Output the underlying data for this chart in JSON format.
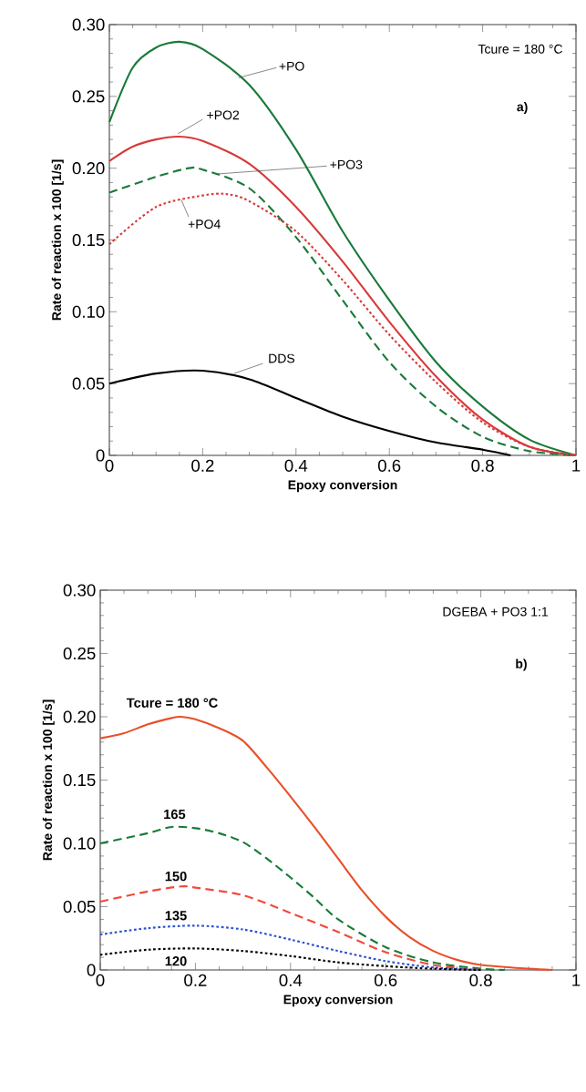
{
  "chart_data": [
    {
      "type": "line",
      "xlabel": "Epoxy conversion",
      "ylabel": "Rate of reaction x 100 [1/s]",
      "xlim": [
        0,
        1
      ],
      "ylim": [
        0,
        0.3
      ],
      "xticks": [
        {
          "value": 0,
          "label": "0"
        },
        {
          "value": 0.2,
          "label": "0.2"
        },
        {
          "value": 0.4,
          "label": "0.4"
        },
        {
          "value": 0.6,
          "label": "0.6"
        },
        {
          "value": 0.8,
          "label": "0.8"
        },
        {
          "value": 1,
          "label": "1"
        }
      ],
      "yticks": [
        {
          "value": 0,
          "label": "0"
        },
        {
          "value": 0.05,
          "label": "0.05"
        },
        {
          "value": 0.1,
          "label": "0.10"
        },
        {
          "value": 0.15,
          "label": "0.15"
        },
        {
          "value": 0.2,
          "label": "0.20"
        },
        {
          "value": 0.25,
          "label": "0.25"
        },
        {
          "value": 0.3,
          "label": "0.30"
        }
      ],
      "annotations": [
        "Tcure = 180 °C",
        "a)"
      ],
      "series": [
        {
          "name": "+PO",
          "color": "#1a7a3a",
          "line_style": "solid",
          "x": [
            0,
            0.05,
            0.1,
            0.15,
            0.2,
            0.3,
            0.4,
            0.5,
            0.6,
            0.7,
            0.8,
            0.9,
            1
          ],
          "values": [
            0.232,
            0.27,
            0.284,
            0.288,
            0.283,
            0.258,
            0.213,
            0.156,
            0.108,
            0.065,
            0.034,
            0.011,
            0
          ]
        },
        {
          "name": "+PO2",
          "color": "#d93a3a",
          "line_style": "solid",
          "x": [
            0,
            0.05,
            0.1,
            0.15,
            0.2,
            0.3,
            0.4,
            0.5,
            0.6,
            0.7,
            0.8,
            0.9,
            1
          ],
          "values": [
            0.205,
            0.215,
            0.22,
            0.222,
            0.219,
            0.203,
            0.173,
            0.135,
            0.093,
            0.055,
            0.025,
            0.006,
            0
          ]
        },
        {
          "name": "+PO3",
          "color": "#1a7a3a",
          "line_style": "dashed",
          "x": [
            0,
            0.1,
            0.17,
            0.2,
            0.3,
            0.4,
            0.5,
            0.6,
            0.7,
            0.8,
            0.9,
            1
          ],
          "values": [
            0.183,
            0.194,
            0.2,
            0.199,
            0.186,
            0.152,
            0.108,
            0.065,
            0.034,
            0.013,
            0.003,
            0
          ]
        },
        {
          "name": "+PO4",
          "color": "#d93a3a",
          "line_style": "dotted",
          "x": [
            0,
            0.1,
            0.2,
            0.25,
            0.3,
            0.4,
            0.5,
            0.6,
            0.7,
            0.8,
            0.9,
            1
          ],
          "values": [
            0.147,
            0.173,
            0.181,
            0.182,
            0.177,
            0.156,
            0.122,
            0.084,
            0.051,
            0.023,
            0.006,
            0
          ]
        },
        {
          "name": "DDS",
          "color": "#000000",
          "line_style": "solid",
          "x": [
            0,
            0.1,
            0.2,
            0.3,
            0.4,
            0.5,
            0.6,
            0.7,
            0.8,
            0.86
          ],
          "values": [
            0.05,
            0.057,
            0.059,
            0.053,
            0.04,
            0.027,
            0.017,
            0.009,
            0.004,
            0
          ]
        }
      ]
    },
    {
      "type": "line",
      "xlabel": "Epoxy conversion",
      "ylabel": "Rate of reaction x 100 [1/s]",
      "xlim": [
        0,
        1
      ],
      "ylim": [
        0,
        0.3
      ],
      "xticks": [
        {
          "value": 0,
          "label": "0"
        },
        {
          "value": 0.2,
          "label": "0.2"
        },
        {
          "value": 0.4,
          "label": "0.4"
        },
        {
          "value": 0.6,
          "label": "0.6"
        },
        {
          "value": 0.8,
          "label": "0.8"
        },
        {
          "value": 1,
          "label": "1"
        }
      ],
      "yticks": [
        {
          "value": 0,
          "label": "0"
        },
        {
          "value": 0.05,
          "label": "0.05"
        },
        {
          "value": 0.1,
          "label": "0.10"
        },
        {
          "value": 0.15,
          "label": "0.15"
        },
        {
          "value": 0.2,
          "label": "0.20"
        },
        {
          "value": 0.25,
          "label": "0.25"
        },
        {
          "value": 0.3,
          "label": "0.30"
        }
      ],
      "annotations": [
        "DGEBA + PO3 1:1",
        "b)"
      ],
      "series": [
        {
          "name": "Tcure = 180 °C",
          "color": "#e8502a",
          "line_style": "solid",
          "x": [
            0,
            0.05,
            0.1,
            0.15,
            0.17,
            0.2,
            0.25,
            0.3,
            0.35,
            0.4,
            0.45,
            0.5,
            0.55,
            0.6,
            0.65,
            0.7,
            0.75,
            0.8,
            0.9,
            0.95
          ],
          "values": [
            0.183,
            0.187,
            0.194,
            0.199,
            0.2,
            0.198,
            0.191,
            0.181,
            0.16,
            0.137,
            0.113,
            0.088,
            0.063,
            0.042,
            0.026,
            0.015,
            0.008,
            0.004,
            0.001,
            0
          ]
        },
        {
          "name": "165",
          "color": "#1a7a3a",
          "line_style": "dashed",
          "x": [
            0,
            0.1,
            0.15,
            0.2,
            0.25,
            0.3,
            0.35,
            0.4,
            0.45,
            0.5,
            0.6,
            0.7,
            0.8,
            0.85
          ],
          "values": [
            0.1,
            0.108,
            0.113,
            0.112,
            0.108,
            0.101,
            0.088,
            0.073,
            0.057,
            0.04,
            0.018,
            0.006,
            0.001,
            0
          ]
        },
        {
          "name": "150",
          "color": "#f04a3a",
          "line_style": "dashed",
          "x": [
            0,
            0.1,
            0.17,
            0.2,
            0.3,
            0.4,
            0.5,
            0.6,
            0.7,
            0.8
          ],
          "values": [
            0.054,
            0.062,
            0.066,
            0.065,
            0.059,
            0.045,
            0.03,
            0.014,
            0.004,
            0
          ]
        },
        {
          "name": "135",
          "color": "#2a50d0",
          "line_style": "dotted",
          "x": [
            0,
            0.1,
            0.2,
            0.3,
            0.4,
            0.5,
            0.6,
            0.7,
            0.8
          ],
          "values": [
            0.028,
            0.033,
            0.035,
            0.032,
            0.024,
            0.015,
            0.007,
            0.002,
            0
          ]
        },
        {
          "name": "120",
          "color": "#000000",
          "line_style": "dotted",
          "x": [
            0,
            0.1,
            0.2,
            0.3,
            0.4,
            0.5,
            0.6,
            0.7,
            0.8
          ],
          "values": [
            0.012,
            0.016,
            0.017,
            0.015,
            0.011,
            0.006,
            0.003,
            0.001,
            0
          ]
        }
      ]
    }
  ]
}
